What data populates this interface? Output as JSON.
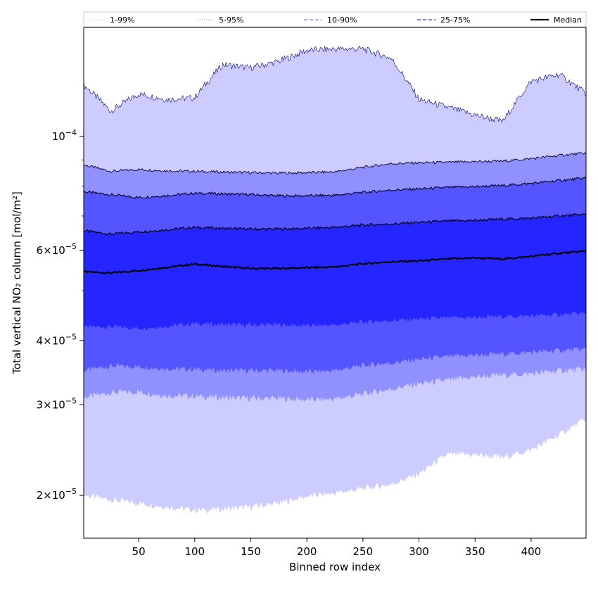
{
  "chart_data": {
    "type": "area",
    "xlabel": "Binned row index",
    "ylabel": "Total vertical NO₂ column [mol/m²]",
    "xlim": [
      1,
      449
    ],
    "ylim": [
      1.65e-05,
      0.000163
    ],
    "yscale": "log",
    "x_ticks": [
      50,
      100,
      150,
      200,
      250,
      300,
      350,
      400
    ],
    "y_ticks": [
      {
        "value": 2e-05,
        "label_base": "2×10",
        "label_exp": "−5"
      },
      {
        "value": 3e-05,
        "label_base": "3×10",
        "label_exp": "−5"
      },
      {
        "value": 4e-05,
        "label_base": "4×10",
        "label_exp": "−5"
      },
      {
        "value": 6e-05,
        "label_base": "6×10",
        "label_exp": "−5"
      },
      {
        "value": 0.0001,
        "label_base": "10",
        "label_exp": "−4"
      }
    ],
    "legend_position": "top",
    "legend": [
      {
        "label": "1-99%",
        "style": "dotted",
        "color": "#cfcfff"
      },
      {
        "label": "5-95%",
        "style": "dotted",
        "color": "#a0a0ff"
      },
      {
        "label": "10-90%",
        "style": "dashed",
        "color": "#8080ff"
      },
      {
        "label": "25-75%",
        "style": "dashed",
        "color": "#3030ff"
      },
      {
        "label": "Median",
        "style": "solid",
        "color": "#000000"
      }
    ],
    "x": [
      1,
      25,
      50,
      75,
      100,
      125,
      150,
      175,
      200,
      225,
      250,
      275,
      300,
      325,
      350,
      375,
      400,
      425,
      449
    ],
    "bands": [
      {
        "name": "1-99%",
        "color": "#ccccff",
        "lower": [
          2e-05,
          1.96e-05,
          1.93e-05,
          1.9e-05,
          1.87e-05,
          1.88e-05,
          1.9e-05,
          1.93e-05,
          1.99e-05,
          2.02e-05,
          2.06e-05,
          2.1e-05,
          2.2e-05,
          2.4e-05,
          2.4e-05,
          2.37e-05,
          2.45e-05,
          2.62e-05,
          2.82e-05
        ],
        "upper": [
          0.000126,
          0.000112,
          0.000121,
          0.000118,
          0.000119,
          0.000138,
          0.000136,
          0.00014,
          0.000147,
          0.000148,
          0.000148,
          0.000142,
          0.000118,
          0.000114,
          0.00011,
          0.000107,
          0.000128,
          0.000132,
          0.000121
        ]
      },
      {
        "name": "5-95%",
        "color": "#9090ff",
        "lower": [
          3.1e-05,
          3.17e-05,
          3.18e-05,
          3.13e-05,
          3.12e-05,
          3.1e-05,
          3.09e-05,
          3.09e-05,
          3.07e-05,
          3.08e-05,
          3.15e-05,
          3.22e-05,
          3.3e-05,
          3.35e-05,
          3.4e-05,
          3.43e-05,
          3.45e-05,
          3.5e-05,
          3.52e-05
        ],
        "upper": [
          8.8e-05,
          8.55e-05,
          8.62e-05,
          8.57e-05,
          8.55e-05,
          8.52e-05,
          8.5e-05,
          8.48e-05,
          8.5e-05,
          8.53e-05,
          8.7e-05,
          8.85e-05,
          8.88e-05,
          8.9e-05,
          8.93e-05,
          8.95e-05,
          9.05e-05,
          9.18e-05,
          9.28e-05
        ]
      },
      {
        "name": "10-90%",
        "color": "#5555ff",
        "lower": [
          3.5e-05,
          3.57e-05,
          3.56e-05,
          3.53e-05,
          3.52e-05,
          3.5e-05,
          3.5e-05,
          3.5e-05,
          3.48e-05,
          3.5e-05,
          3.58e-05,
          3.62e-05,
          3.68e-05,
          3.72e-05,
          3.75e-05,
          3.77e-05,
          3.8e-05,
          3.83e-05,
          3.85e-05
        ]
      },
      {
        "name": "25-75%",
        "color": "#2525ff",
        "lower": [
          4.25e-05,
          4.26e-05,
          4.23e-05,
          4.27e-05,
          4.32e-05,
          4.3e-05,
          4.29e-05,
          4.3e-05,
          4.28e-05,
          4.29e-05,
          4.35e-05,
          4.38e-05,
          4.41e-05,
          4.43e-05,
          4.44e-05,
          4.46e-05,
          4.47e-05,
          4.5e-05,
          4.52e-05
        ],
        "upper": [
          6.55e-05,
          6.45e-05,
          6.52e-05,
          6.58e-05,
          6.65e-05,
          6.62e-05,
          6.6e-05,
          6.6e-05,
          6.62e-05,
          6.65e-05,
          6.72e-05,
          6.75e-05,
          6.8e-05,
          6.84e-05,
          6.86e-05,
          6.9e-05,
          6.93e-05,
          7e-05,
          7.05e-05
        ]
      }
    ],
    "band_upper_10_90": [
      7.8e-05,
      7.7e-05,
      7.6e-05,
      7.67e-05,
      7.75e-05,
      7.73e-05,
      7.7e-05,
      7.66e-05,
      7.66e-05,
      7.68e-05,
      7.78e-05,
      7.86e-05,
      7.9e-05,
      7.95e-05,
      7.98e-05,
      8.02e-05,
      8.1e-05,
      8.2e-05,
      8.3e-05
    ],
    "median": [
      5.45e-05,
      5.42e-05,
      5.48e-05,
      5.56e-05,
      5.64e-05,
      5.58e-05,
      5.53e-05,
      5.53e-05,
      5.55e-05,
      5.57e-05,
      5.65e-05,
      5.7e-05,
      5.72e-05,
      5.77e-05,
      5.8e-05,
      5.77e-05,
      5.84e-05,
      5.92e-05,
      5.98e-05
    ]
  }
}
